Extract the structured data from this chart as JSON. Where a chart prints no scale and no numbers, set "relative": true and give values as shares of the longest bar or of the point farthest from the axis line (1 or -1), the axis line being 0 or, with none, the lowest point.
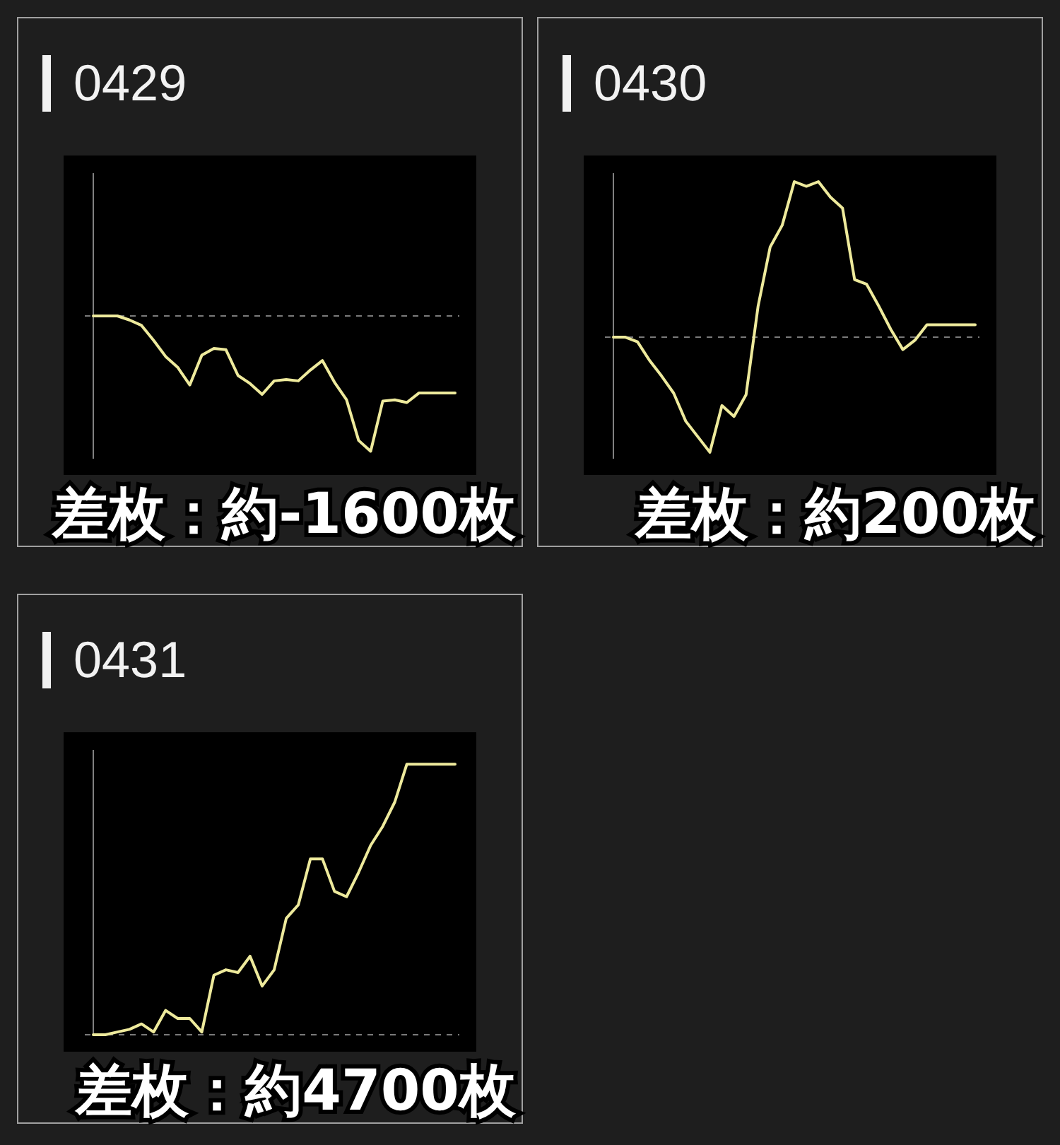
{
  "chart_data": [
    {
      "type": "line",
      "title": "0429",
      "categories": [
        null,
        null,
        null,
        null,
        null,
        null,
        null,
        null,
        null,
        null,
        null,
        null,
        null,
        null,
        null,
        null,
        null,
        null,
        null,
        null,
        null,
        null,
        null,
        null,
        null,
        null,
        null,
        null,
        null,
        null,
        null
      ],
      "series": [
        {
          "color": "#eeea9c",
          "values": [
            0,
            0,
            0,
            -0.03,
            -0.07,
            -0.18,
            -0.3,
            -0.38,
            -0.51,
            -0.29,
            -0.24,
            -0.25,
            -0.44,
            -0.5,
            -0.58,
            -0.48,
            -0.47,
            -0.48,
            -0.4,
            -0.33,
            -0.49,
            -0.62,
            -0.92,
            -1,
            -0.63,
            -0.62,
            -0.64,
            -0.57,
            -0.57,
            -0.57,
            -0.57
          ]
        }
      ],
      "relative": true,
      "tick_labels": false,
      "marker": "none",
      "ref_lines": [
        {
          "axis": "y",
          "value": 0,
          "color": "#7a7a7a",
          "line_style": "dashed"
        }
      ],
      "annotations": [
        "差枚：約-1600枚"
      ]
    },
    {
      "type": "line",
      "title": "0430",
      "categories": [
        null,
        null,
        null,
        null,
        null,
        null,
        null,
        null,
        null,
        null,
        null,
        null,
        null,
        null,
        null,
        null,
        null,
        null,
        null,
        null,
        null,
        null,
        null,
        null,
        null,
        null,
        null,
        null,
        null,
        null,
        null
      ],
      "series": [
        {
          "color": "#eeea9c",
          "values": [
            0,
            0,
            -0.03,
            -0.15,
            -0.25,
            -0.36,
            -0.54,
            -0.64,
            -0.74,
            -0.44,
            -0.51,
            -0.37,
            0.2,
            0.58,
            0.72,
            1,
            0.97,
            1,
            0.9,
            0.83,
            0.37,
            0.34,
            0.2,
            0.05,
            -0.08,
            -0.02,
            0.08,
            0.08,
            0.08,
            0.08,
            0.08
          ]
        }
      ],
      "relative": true,
      "tick_labels": false,
      "marker": "none",
      "ref_lines": [
        {
          "axis": "y",
          "value": 0,
          "color": "#7a7a7a",
          "line_style": "dashed"
        }
      ],
      "annotations": [
        "差枚：約200枚"
      ]
    },
    {
      "type": "line",
      "title": "0431",
      "categories": [
        null,
        null,
        null,
        null,
        null,
        null,
        null,
        null,
        null,
        null,
        null,
        null,
        null,
        null,
        null,
        null,
        null,
        null,
        null,
        null,
        null,
        null,
        null,
        null,
        null,
        null,
        null,
        null,
        null,
        null,
        null
      ],
      "series": [
        {
          "color": "#eeea9c",
          "values": [
            0,
            0,
            0.01,
            0.02,
            0.04,
            0.01,
            0.09,
            0.06,
            0.06,
            0.01,
            0.22,
            0.24,
            0.23,
            0.29,
            0.18,
            0.24,
            0.43,
            0.48,
            0.65,
            0.65,
            0.53,
            0.51,
            0.6,
            0.7,
            0.77,
            0.86,
            1,
            1,
            1,
            1,
            1
          ]
        }
      ],
      "relative": true,
      "tick_labels": false,
      "marker": "none",
      "ref_lines": [
        {
          "axis": "y",
          "value": 0,
          "color": "#7a7a7a",
          "line_style": "dashed"
        }
      ],
      "annotations": [
        "差枚：約4700枚"
      ]
    }
  ]
}
